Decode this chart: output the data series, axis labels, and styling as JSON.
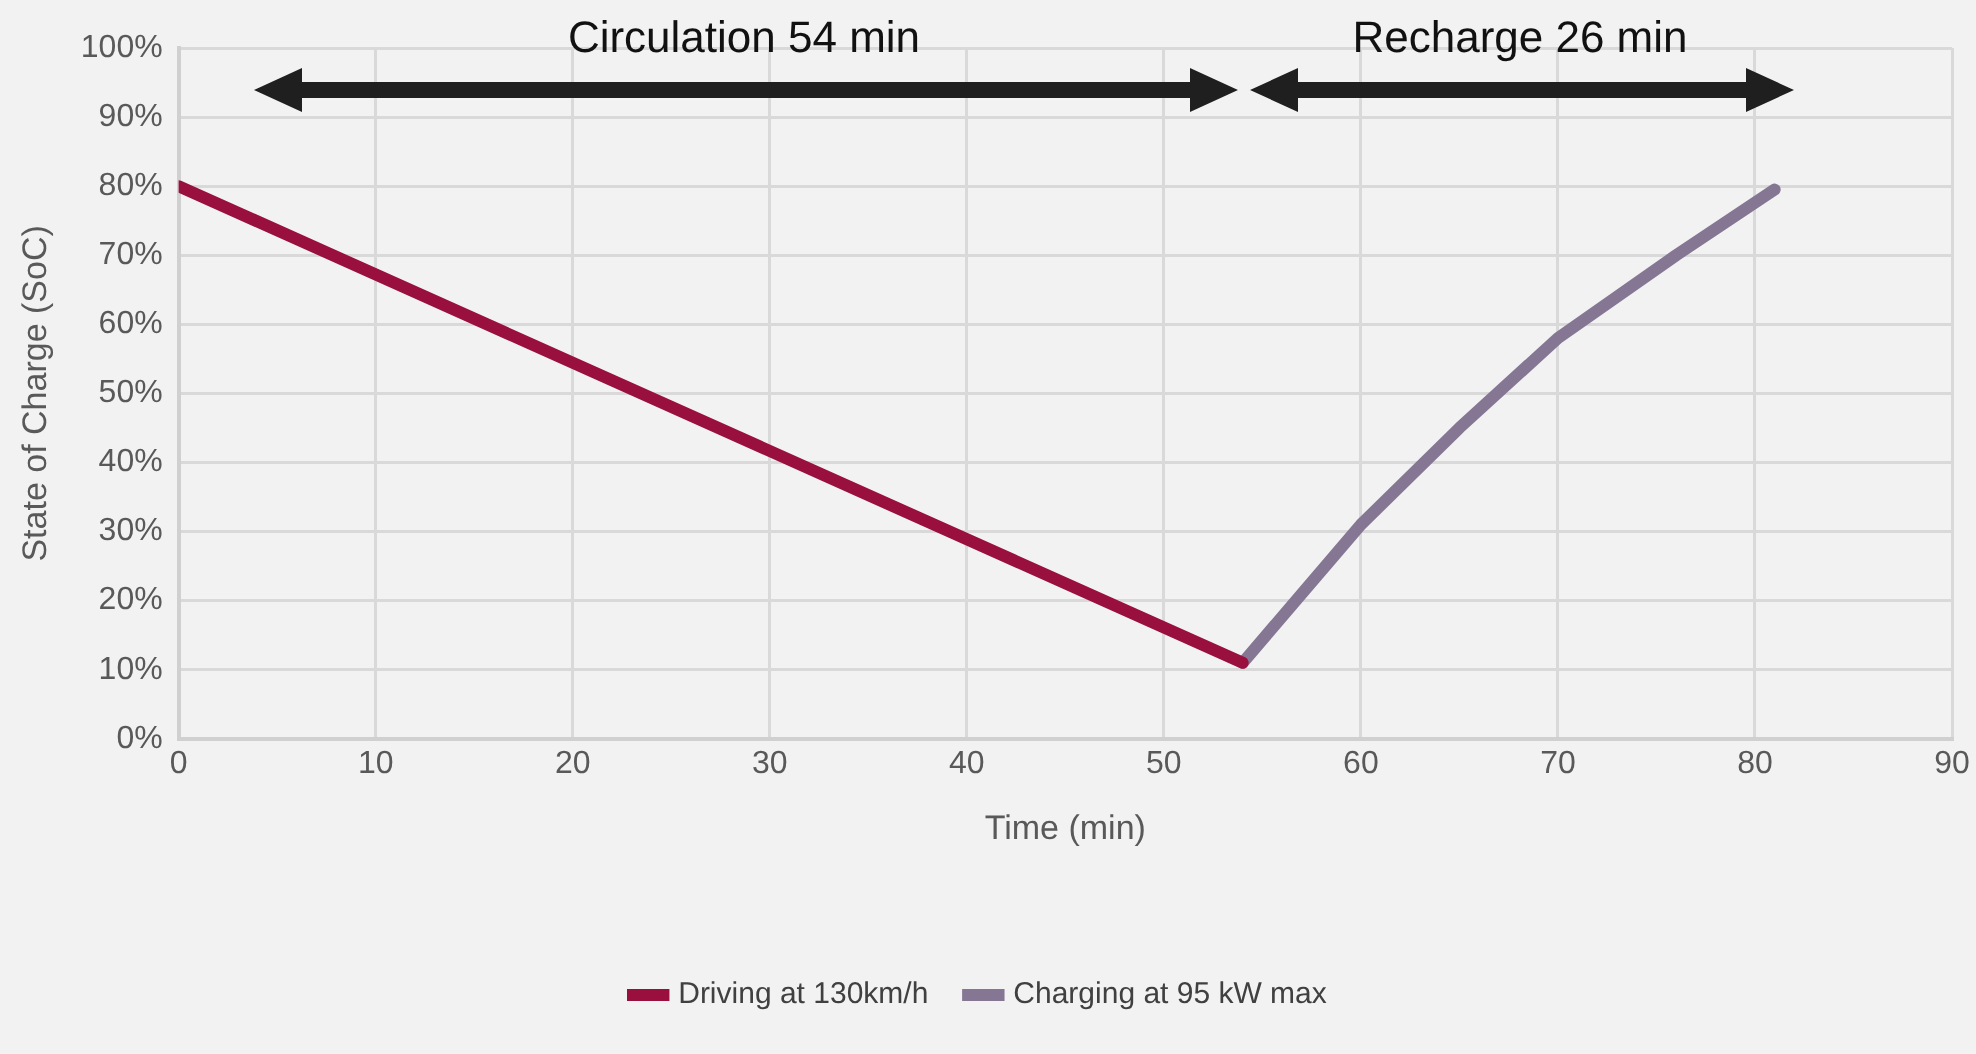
{
  "chart_data": {
    "type": "line",
    "xlabel": "Time (min)",
    "ylabel": "State of Charge (SoC)",
    "annotations": [
      "Circulation 54 min",
      "Recharge 26 min"
    ],
    "series": [
      {
        "name": "Driving at 130km/h",
        "color": "#990f3d",
        "x": [
          0,
          54
        ],
        "values": [
          80,
          11
        ]
      },
      {
        "name": "Charging at 95 kW max",
        "color": "#857794",
        "x": [
          54,
          60,
          65,
          70,
          76,
          81
        ],
        "values": [
          11,
          31,
          45,
          58,
          70,
          79.5
        ]
      }
    ],
    "xlim": [
      0,
      90
    ],
    "xticks": [
      0,
      10,
      20,
      30,
      40,
      50,
      60,
      70,
      80,
      90
    ],
    "ylim": [
      0,
      100
    ],
    "yticks": [
      {
        "value": 0,
        "label": "0%"
      },
      {
        "value": 10,
        "label": "10%"
      },
      {
        "value": 20,
        "label": "20%"
      },
      {
        "value": 30,
        "label": "30%"
      },
      {
        "value": 40,
        "label": "40%"
      },
      {
        "value": 50,
        "label": "50%"
      },
      {
        "value": 60,
        "label": "60%"
      },
      {
        "value": 70,
        "label": "70%"
      },
      {
        "value": 80,
        "label": "80%"
      },
      {
        "value": 90,
        "label": "90%"
      },
      {
        "value": 100,
        "label": "100%"
      }
    ],
    "grid": true,
    "legend": "bottom",
    "marker": "none",
    "line_style": "solid"
  }
}
